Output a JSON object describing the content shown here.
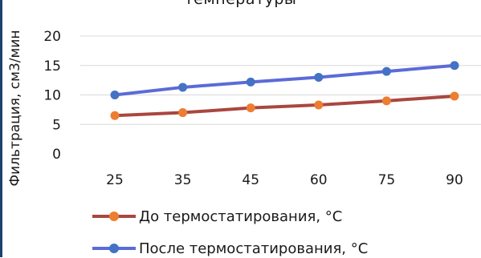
{
  "chart_data": {
    "type": "line",
    "title": "температуры",
    "xlabel": "",
    "ylabel": "Фильтрация, см3/мин",
    "categories": [
      "25",
      "35",
      "45",
      "60",
      "75",
      "90"
    ],
    "yticks": [
      "0",
      "5",
      "10",
      "15",
      "20"
    ],
    "ylim": [
      0,
      20
    ],
    "grid": true,
    "legend_position": "bottom",
    "series": [
      {
        "name": "До термостатирования, °С",
        "values": [
          6.5,
          7.0,
          7.8,
          8.3,
          9.0,
          9.8
        ],
        "color": "#ed7d31",
        "line_color": "#a9473f"
      },
      {
        "name": "После термостатирования, °С",
        "values": [
          10.0,
          11.3,
          12.2,
          13.0,
          14.0,
          15.0
        ],
        "color": "#4472c4",
        "line_color": "#5b6bd8"
      }
    ]
  }
}
